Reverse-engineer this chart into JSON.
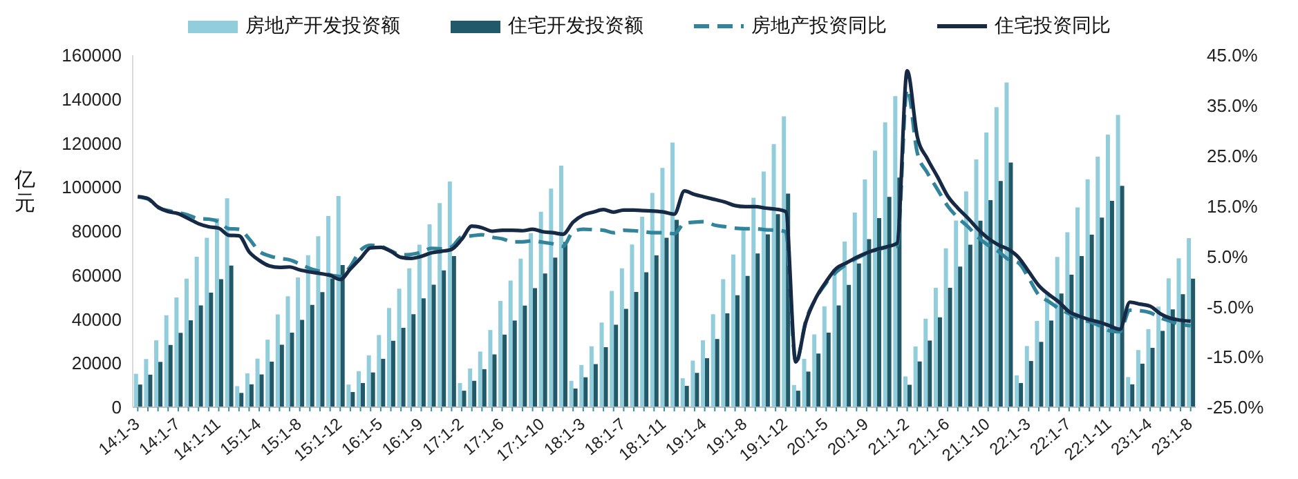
{
  "chart_data": {
    "type": "bar",
    "ylabel": "亿元",
    "legend": "top",
    "marker": "none",
    "categories": [
      "14:1-3",
      null,
      null,
      null,
      "14:1-7",
      null,
      null,
      null,
      "14:1-11",
      null,
      null,
      null,
      "15:1-4",
      null,
      null,
      null,
      "15:1-8",
      null,
      null,
      null,
      "15:1-12",
      null,
      null,
      null,
      "16:1-5",
      null,
      null,
      null,
      "16:1-9",
      null,
      null,
      null,
      "17:1-2",
      null,
      null,
      null,
      "17:1-6",
      null,
      null,
      null,
      "17:1-10",
      null,
      null,
      null,
      "18:1-3",
      null,
      null,
      null,
      "18:1-7",
      null,
      null,
      null,
      "18:1-11",
      null,
      null,
      null,
      "19:1-4",
      null,
      null,
      null,
      "19:1-8",
      null,
      null,
      null,
      "19:1-12",
      null,
      null,
      null,
      "20:1-5",
      null,
      null,
      null,
      "20:1-9",
      null,
      null,
      null,
      "21:1-2",
      null,
      null,
      null,
      "21:1-6",
      null,
      null,
      null,
      "21:1-10",
      null,
      null,
      null,
      "22:1-3",
      null,
      null,
      null,
      "22:1-7",
      null,
      null,
      null,
      "22:1-11",
      null,
      null,
      null,
      "23:1-4",
      null,
      null,
      null,
      "23:1-8"
    ],
    "ylim": [
      0,
      160000
    ],
    "yticks": [
      0,
      20000,
      40000,
      60000,
      80000,
      100000,
      120000,
      140000,
      160000
    ],
    "y2lim": [
      -25,
      45
    ],
    "y2ticks": [
      {
        "value": -25,
        "label": "-25.0%"
      },
      {
        "value": -15,
        "label": "-15.0%"
      },
      {
        "value": -5,
        "label": "-5.0%"
      },
      {
        "value": 5,
        "label": "5.0%"
      },
      {
        "value": 15,
        "label": "15.0%"
      },
      {
        "value": 25,
        "label": "25.0%"
      },
      {
        "value": 35,
        "label": "35.0%"
      },
      {
        "value": 45,
        "label": "45.0%"
      }
    ],
    "series": [
      {
        "name": "房地产开发投资额",
        "color": "#92cddc",
        "values": [
          15200,
          21900,
          30400,
          41800,
          49900,
          58400,
          68400,
          77000,
          86000,
          95000,
          9600,
          15400,
          22100,
          30700,
          42200,
          50400,
          59000,
          69100,
          77700,
          86900,
          96000,
          10300,
          16400,
          23600,
          32800,
          45100,
          53900,
          63100,
          73900,
          83100,
          92800,
          102600,
          11000,
          17600,
          25300,
          35100,
          48300,
          57600,
          67500,
          79100,
          88900,
          99400,
          109800,
          12000,
          19200,
          27700,
          38500,
          52900,
          63100,
          74000,
          86600,
          97400,
          108800,
          120300,
          13200,
          21200,
          30400,
          42300,
          58200,
          69400,
          81300,
          95200,
          107100,
          119600,
          132200,
          10100,
          22000,
          33100,
          45900,
          62800,
          75300,
          88500,
          103500,
          116600,
          129500,
          141400,
          14000,
          27600,
          40200,
          54300,
          72200,
          84900,
          98100,
          112600,
          124900,
          136400,
          147600,
          14500,
          27800,
          39200,
          52100,
          68300,
          79500,
          90800,
          103600,
          113900,
          123900,
          132900,
          13700,
          26000,
          35500,
          45700,
          58600,
          67700,
          76900
        ]
      },
      {
        "name": "住宅开发投资额",
        "color": "#215968",
        "values": [
          10300,
          14800,
          20600,
          28300,
          33800,
          39500,
          46300,
          52100,
          58200,
          64400,
          6500,
          10400,
          14900,
          20700,
          28400,
          33900,
          39700,
          46500,
          52300,
          58500,
          64600,
          6900,
          11000,
          15800,
          22000,
          30200,
          36100,
          42300,
          49500,
          55700,
          62200,
          68700,
          7500,
          12000,
          17300,
          24000,
          33000,
          39400,
          46200,
          54100,
          60800,
          68000,
          75100,
          8500,
          13600,
          19600,
          27300,
          37500,
          44700,
          52400,
          61300,
          69000,
          77000,
          85200,
          9700,
          15600,
          22300,
          31000,
          42700,
          50900,
          59700,
          69900,
          78600,
          87800,
          97100,
          7500,
          16200,
          24400,
          33900,
          46300,
          55600,
          65300,
          76400,
          86000,
          95600,
          104400,
          10200,
          20800,
          30300,
          40900,
          54300,
          63900,
          73900,
          84800,
          94100,
          102800,
          111200,
          11000,
          21000,
          29700,
          39400,
          51700,
          60200,
          68700,
          78400,
          86200,
          93800,
          100600,
          10400,
          19800,
          27000,
          34700,
          44500,
          51400,
          58400
        ]
      },
      {
        "name": "房地产投资同比",
        "type": "line",
        "axis": "y2",
        "line_style": "dashed",
        "color": "#31849b",
        "values": [
          16.8,
          16.4,
          14.7,
          14.1,
          13.7,
          13.2,
          12.5,
          12.4,
          11.9,
          10.5,
          10.4,
          8.5,
          6.0,
          5.1,
          4.6,
          4.3,
          3.5,
          2.6,
          2.0,
          1.3,
          1.0,
          3.0,
          6.2,
          7.2,
          7.0,
          6.1,
          5.3,
          5.4,
          5.8,
          6.6,
          6.5,
          6.9,
          8.9,
          9.1,
          9.3,
          8.8,
          8.5,
          7.9,
          7.9,
          8.1,
          7.8,
          7.5,
          7.0,
          9.9,
          10.4,
          10.3,
          10.2,
          9.7,
          10.2,
          10.1,
          9.9,
          9.7,
          9.7,
          9.5,
          11.6,
          11.8,
          11.9,
          11.2,
          10.9,
          10.6,
          10.5,
          10.5,
          10.3,
          10.2,
          9.9,
          -16.3,
          -7.7,
          -3.3,
          -0.3,
          1.9,
          3.4,
          4.6,
          5.6,
          6.3,
          6.8,
          7.0,
          38.3,
          25.6,
          21.6,
          18.3,
          15.0,
          12.7,
          10.9,
          8.8,
          7.2,
          6.0,
          4.4,
          3.7,
          0.7,
          -2.7,
          -4.0,
          -5.4,
          -6.4,
          -7.4,
          -8.0,
          -8.8,
          -9.8,
          -10.0,
          -5.7,
          -5.8,
          -6.2,
          -7.2,
          -7.9,
          -8.5,
          -8.8
        ]
      },
      {
        "name": "住宅投资同比",
        "type": "line",
        "axis": "y2",
        "line_style": "solid",
        "color": "#172a45",
        "values": [
          16.9,
          16.5,
          14.8,
          13.9,
          13.5,
          12.5,
          11.5,
          10.9,
          10.6,
          9.2,
          9.1,
          5.9,
          4.2,
          3.1,
          2.8,
          2.9,
          2.3,
          1.9,
          1.6,
          1.2,
          0.4,
          2.5,
          4.6,
          6.7,
          6.8,
          6.0,
          4.8,
          4.6,
          5.0,
          5.7,
          6.0,
          6.4,
          8.4,
          11.0,
          10.7,
          10.0,
          10.2,
          10.2,
          10.1,
          10.4,
          9.9,
          9.7,
          9.4,
          11.8,
          13.2,
          13.8,
          14.3,
          13.8,
          14.2,
          14.2,
          14.1,
          14.0,
          13.8,
          13.4,
          18.0,
          17.3,
          16.8,
          16.3,
          15.8,
          15.1,
          14.9,
          14.9,
          14.6,
          14.4,
          13.9,
          -16.0,
          -8.0,
          -3.2,
          0.0,
          2.6,
          3.7,
          4.8,
          5.7,
          6.4,
          6.9,
          7.6,
          41.9,
          28.8,
          24.4,
          20.8,
          17.0,
          14.6,
          12.6,
          10.4,
          8.6,
          7.3,
          6.4,
          4.8,
          2.0,
          -0.8,
          -2.6,
          -4.1,
          -6.0,
          -6.9,
          -7.6,
          -8.1,
          -8.8,
          -9.5,
          -4.1,
          -4.5,
          -4.9,
          -6.4,
          -7.3,
          -7.7,
          -7.9
        ]
      }
    ]
  }
}
